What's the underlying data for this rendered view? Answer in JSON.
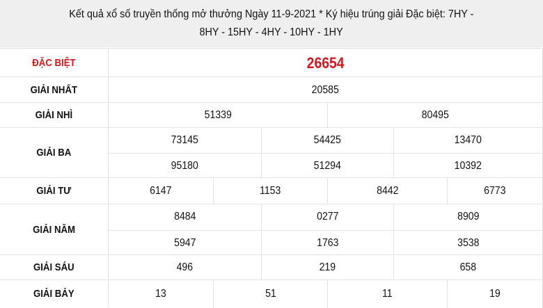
{
  "header": {
    "line1": "Kết quả xổ số truyền thống mở thưởng Ngày 11-9-2021 * Ký hiệu trúng giải Đặc biệt: 7HY -",
    "line2": "8HY - 15HY - 4HY - 10HY - 1HY"
  },
  "colors": {
    "special": "#d0191e",
    "header_bg": "#efefef"
  },
  "prizes": [
    {
      "label": "ĐẶC BIỆT",
      "numbers": [
        [
          "26654"
        ]
      ]
    },
    {
      "label": "GIẢI NHẤT",
      "numbers": [
        [
          "20585"
        ]
      ]
    },
    {
      "label": "GIẢI NHÌ",
      "numbers": [
        [
          "51339",
          "80495"
        ]
      ]
    },
    {
      "label": "GIẢI BA",
      "numbers": [
        [
          "73145",
          "54425",
          "13470"
        ],
        [
          "95180",
          "51294",
          "10392"
        ]
      ]
    },
    {
      "label": "GIẢI TƯ",
      "numbers": [
        [
          "6147",
          "1153",
          "8442",
          "6773"
        ]
      ]
    },
    {
      "label": "GIẢI NĂM",
      "numbers": [
        [
          "8484",
          "0277",
          "8909"
        ],
        [
          "5947",
          "1763",
          "3538"
        ]
      ]
    },
    {
      "label": "GIẢI SÁU",
      "numbers": [
        [
          "496",
          "219",
          "658"
        ]
      ]
    },
    {
      "label": "GIẢI BẢY",
      "numbers": [
        [
          "13",
          "51",
          "11",
          "19"
        ]
      ]
    }
  ]
}
